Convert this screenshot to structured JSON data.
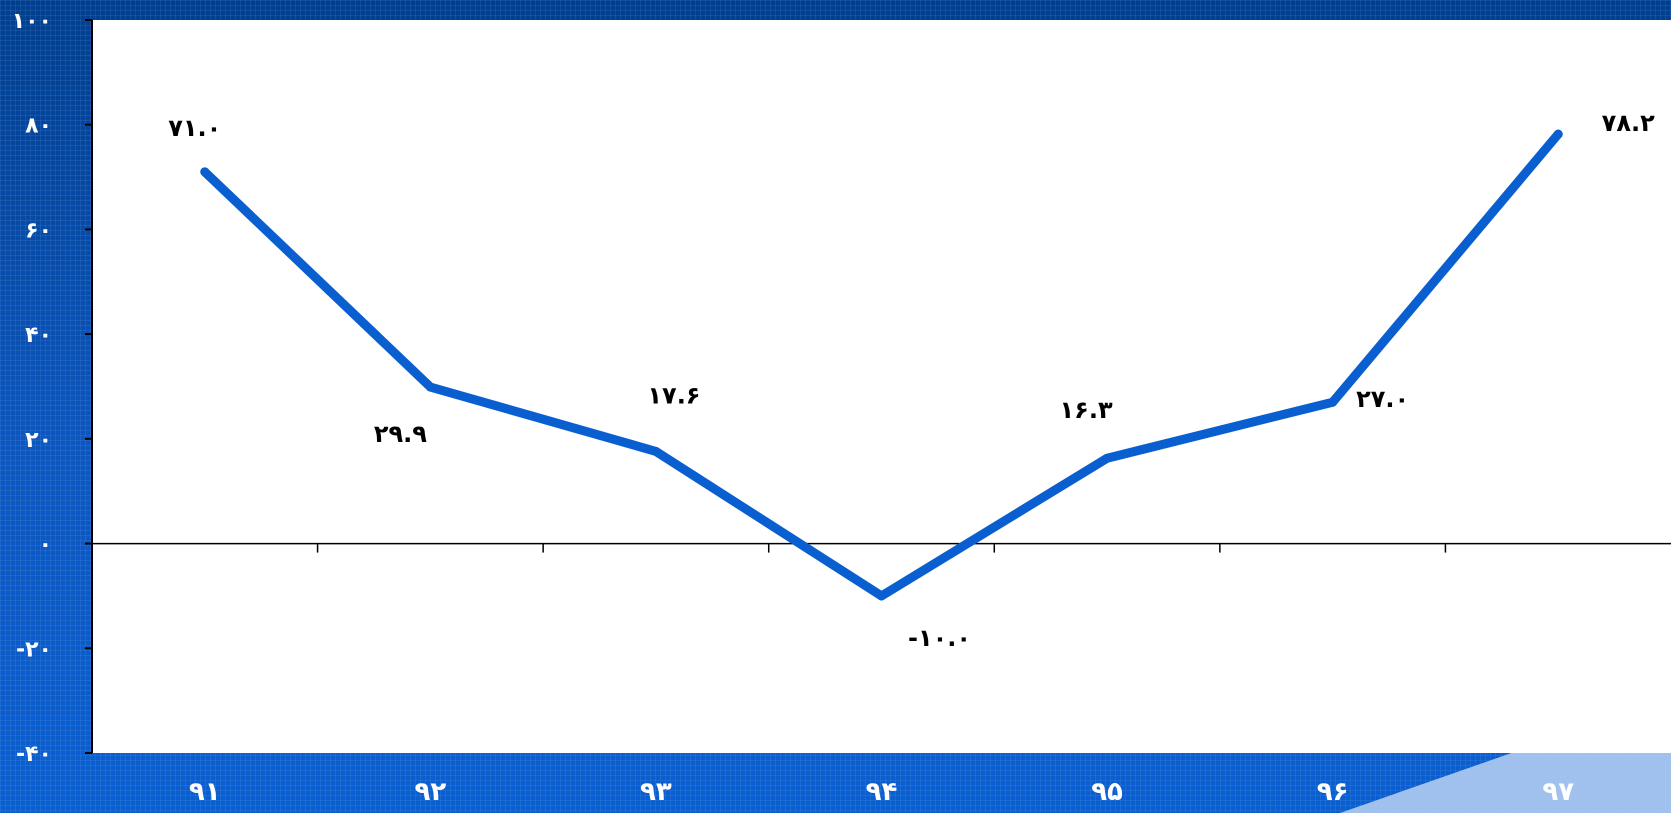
{
  "chart_data": {
    "type": "line",
    "categories": [
      "۹۱",
      "۹۲",
      "۹۳",
      "۹۴",
      "۹۵",
      "۹۶",
      "۹۷"
    ],
    "series": [
      {
        "values": [
          71.0,
          29.9,
          17.6,
          -10.0,
          16.3,
          27.0,
          78.2
        ],
        "labels": [
          "۷۱.۰",
          "۲۹.۹",
          "۱۷.۶",
          "-۱۰.۰",
          "۱۶.۳",
          "۲۷.۰",
          "۷۸.۲"
        ],
        "color": "#0a5fd0"
      }
    ],
    "ylim": [
      -40,
      100
    ],
    "yticks": [
      100,
      80,
      60,
      40,
      20,
      0,
      -20,
      -40
    ],
    "ytick_labels": [
      "۱۰۰",
      "۸۰",
      "۶۰",
      "۴۰",
      "۲۰",
      "۰",
      "-۲۰",
      "-۴۰"
    ],
    "grid": false,
    "legend": "none",
    "plot_background": "#ffffff",
    "accent_color": "#a9c6ef"
  }
}
